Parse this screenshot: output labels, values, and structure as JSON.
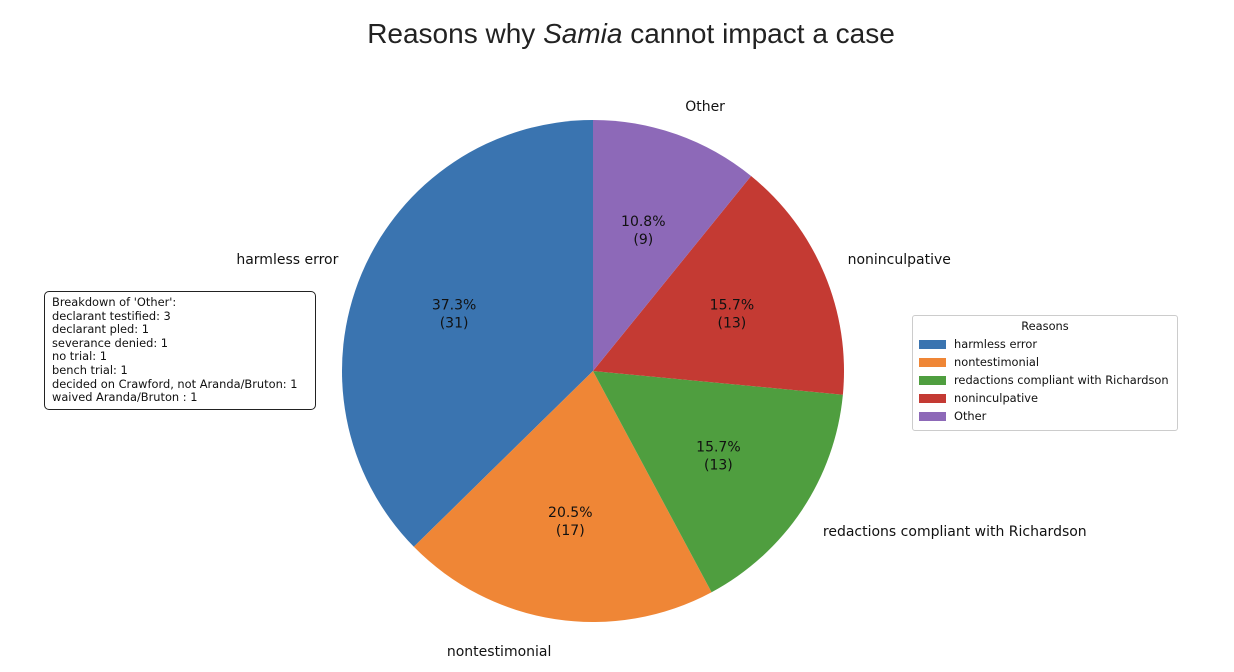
{
  "title": {
    "prefix": "Reasons why ",
    "emphasis": "Samia",
    "suffix": " cannot impact a case"
  },
  "chart_data": {
    "type": "pie",
    "title": "Reasons why Samia cannot impact a case",
    "start_angle_deg": 90,
    "direction": "counterclockwise",
    "slices": [
      {
        "name": "harmless error",
        "value": 31,
        "percent": "37.3%",
        "count_label": "(31)",
        "color": "#3a74b0"
      },
      {
        "name": "nontestimonial",
        "value": 17,
        "percent": "20.5%",
        "count_label": "(17)",
        "color": "#ef8636"
      },
      {
        "name": "redactions compliant with Richardson",
        "value": 13,
        "percent": "15.7%",
        "count_label": "(13)",
        "color": "#4f9e3f"
      },
      {
        "name": "noninculpative",
        "value": 13,
        "percent": "15.7%",
        "count_label": "(13)",
        "color": "#c43a33"
      },
      {
        "name": "Other",
        "value": 9,
        "percent": "10.8%",
        "count_label": "(9)",
        "color": "#8d69b8"
      }
    ],
    "legend": {
      "title": "Reasons",
      "placement": "right"
    }
  },
  "note": {
    "title": "Breakdown of 'Other':",
    "lines": [
      "declarant testified: 3",
      "declarant pled: 1",
      "severance denied: 1",
      "no trial: 1",
      "bench trial: 1",
      "decided on Crawford, not Aranda/Bruton: 1",
      "waived Aranda/Bruton : 1"
    ]
  }
}
